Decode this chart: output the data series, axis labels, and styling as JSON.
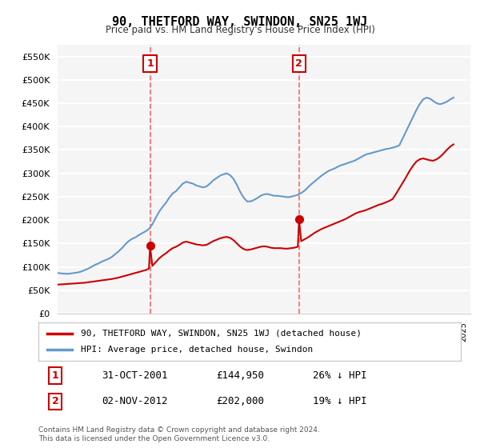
{
  "title": "90, THETFORD WAY, SWINDON, SN25 1WJ",
  "subtitle": "Price paid vs. HM Land Registry's House Price Index (HPI)",
  "ylabel_ticks": [
    "£0",
    "£50K",
    "£100K",
    "£150K",
    "£200K",
    "£250K",
    "£300K",
    "£350K",
    "£400K",
    "£450K",
    "£500K",
    "£550K"
  ],
  "ytick_values": [
    0,
    50000,
    100000,
    150000,
    200000,
    250000,
    300000,
    350000,
    400000,
    450000,
    500000,
    550000
  ],
  "ylim": [
    0,
    575000
  ],
  "red_line_color": "#cc0000",
  "blue_line_color": "#6699cc",
  "marker_color": "#cc0000",
  "vline_color": "#ff6666",
  "annotation_box_color": "#cc0000",
  "background_color": "#f5f5f5",
  "grid_color": "#ffffff",
  "legend_label_red": "90, THETFORD WAY, SWINDON, SN25 1WJ (detached house)",
  "legend_label_blue": "HPI: Average price, detached house, Swindon",
  "purchase1_date": "31-OCT-2001",
  "purchase1_price": "£144,950",
  "purchase1_pct": "26% ↓ HPI",
  "purchase1_year": 2001.83,
  "purchase1_value": 144950,
  "purchase2_date": "02-NOV-2012",
  "purchase2_price": "£202,000",
  "purchase2_pct": "19% ↓ HPI",
  "purchase2_year": 2012.84,
  "purchase2_value": 202000,
  "footnote": "Contains HM Land Registry data © Crown copyright and database right 2024.\nThis data is licensed under the Open Government Licence v3.0.",
  "hpi_years": [
    1995.0,
    1995.25,
    1995.5,
    1995.75,
    1996.0,
    1996.25,
    1996.5,
    1996.75,
    1997.0,
    1997.25,
    1997.5,
    1997.75,
    1998.0,
    1998.25,
    1998.5,
    1998.75,
    1999.0,
    1999.25,
    1999.5,
    1999.75,
    2000.0,
    2000.25,
    2000.5,
    2000.75,
    2001.0,
    2001.25,
    2001.5,
    2001.75,
    2002.0,
    2002.25,
    2002.5,
    2002.75,
    2003.0,
    2003.25,
    2003.5,
    2003.75,
    2004.0,
    2004.25,
    2004.5,
    2004.75,
    2005.0,
    2005.25,
    2005.5,
    2005.75,
    2006.0,
    2006.25,
    2006.5,
    2006.75,
    2007.0,
    2007.25,
    2007.5,
    2007.75,
    2008.0,
    2008.25,
    2008.5,
    2008.75,
    2009.0,
    2009.25,
    2009.5,
    2009.75,
    2010.0,
    2010.25,
    2010.5,
    2010.75,
    2011.0,
    2011.25,
    2011.5,
    2011.75,
    2012.0,
    2012.25,
    2012.5,
    2012.75,
    2013.0,
    2013.25,
    2013.5,
    2013.75,
    2014.0,
    2014.25,
    2014.5,
    2014.75,
    2015.0,
    2015.25,
    2015.5,
    2015.75,
    2016.0,
    2016.25,
    2016.5,
    2016.75,
    2017.0,
    2017.25,
    2017.5,
    2017.75,
    2018.0,
    2018.25,
    2018.5,
    2018.75,
    2019.0,
    2019.25,
    2019.5,
    2019.75,
    2020.0,
    2020.25,
    2020.5,
    2020.75,
    2021.0,
    2021.25,
    2021.5,
    2021.75,
    2022.0,
    2022.25,
    2022.5,
    2022.75,
    2023.0,
    2023.25,
    2023.5,
    2023.75,
    2024.0,
    2024.25
  ],
  "hpi_values": [
    87000,
    86000,
    85500,
    85000,
    86000,
    87000,
    88000,
    90000,
    93000,
    96000,
    100000,
    104000,
    107000,
    111000,
    114000,
    117000,
    121000,
    127000,
    133000,
    140000,
    148000,
    155000,
    160000,
    163000,
    168000,
    172000,
    176000,
    181000,
    191000,
    205000,
    218000,
    228000,
    237000,
    248000,
    257000,
    262000,
    270000,
    278000,
    282000,
    280000,
    278000,
    274000,
    272000,
    270000,
    272000,
    278000,
    285000,
    290000,
    295000,
    298000,
    300000,
    296000,
    288000,
    275000,
    260000,
    248000,
    240000,
    240000,
    243000,
    247000,
    252000,
    255000,
    256000,
    254000,
    252000,
    252000,
    251000,
    250000,
    249000,
    250000,
    252000,
    254000,
    258000,
    263000,
    270000,
    277000,
    283000,
    289000,
    295000,
    300000,
    305000,
    308000,
    311000,
    315000,
    318000,
    320000,
    323000,
    325000,
    328000,
    332000,
    336000,
    340000,
    342000,
    344000,
    346000,
    348000,
    350000,
    352000,
    353000,
    355000,
    357000,
    360000,
    375000,
    390000,
    405000,
    420000,
    435000,
    448000,
    458000,
    462000,
    460000,
    455000,
    450000,
    448000,
    450000,
    453000,
    458000,
    462000
  ],
  "red_years": [
    1995.0,
    1995.25,
    1995.5,
    1995.75,
    1996.0,
    1996.25,
    1996.5,
    1996.75,
    1997.0,
    1997.25,
    1997.5,
    1997.75,
    1998.0,
    1998.25,
    1998.5,
    1998.75,
    1999.0,
    1999.25,
    1999.5,
    1999.75,
    2000.0,
    2000.25,
    2000.5,
    2000.75,
    2001.0,
    2001.25,
    2001.5,
    2001.75,
    2001.83,
    2002.0,
    2002.25,
    2002.5,
    2002.75,
    2003.0,
    2003.25,
    2003.5,
    2003.75,
    2004.0,
    2004.25,
    2004.5,
    2004.75,
    2005.0,
    2005.25,
    2005.5,
    2005.75,
    2006.0,
    2006.25,
    2006.5,
    2006.75,
    2007.0,
    2007.25,
    2007.5,
    2007.75,
    2008.0,
    2008.25,
    2008.5,
    2008.75,
    2009.0,
    2009.25,
    2009.5,
    2009.75,
    2010.0,
    2010.25,
    2010.5,
    2010.75,
    2011.0,
    2011.25,
    2011.5,
    2011.75,
    2012.0,
    2012.25,
    2012.5,
    2012.75,
    2012.84,
    2013.0,
    2013.25,
    2013.5,
    2013.75,
    2014.0,
    2014.25,
    2014.5,
    2014.75,
    2015.0,
    2015.25,
    2015.5,
    2015.75,
    2016.0,
    2016.25,
    2016.5,
    2016.75,
    2017.0,
    2017.25,
    2017.5,
    2017.75,
    2018.0,
    2018.25,
    2018.5,
    2018.75,
    2019.0,
    2019.25,
    2019.5,
    2019.75,
    2020.0,
    2020.25,
    2020.5,
    2020.75,
    2021.0,
    2021.25,
    2021.5,
    2021.75,
    2022.0,
    2022.25,
    2022.5,
    2022.75,
    2023.0,
    2023.25,
    2023.5,
    2023.75,
    2024.0,
    2024.25
  ],
  "red_values": [
    62000,
    62500,
    63000,
    63500,
    64000,
    64500,
    65000,
    65500,
    66000,
    67000,
    68000,
    69000,
    70000,
    71000,
    72000,
    73000,
    74000,
    75500,
    77000,
    79000,
    81000,
    83000,
    85000,
    87000,
    89000,
    91000,
    93000,
    96000,
    144950,
    102000,
    110000,
    118000,
    124000,
    129000,
    135000,
    140000,
    143000,
    147000,
    152000,
    154000,
    152000,
    150000,
    148000,
    147000,
    146000,
    147000,
    151000,
    155000,
    158000,
    161000,
    163000,
    164000,
    162000,
    157000,
    150000,
    143000,
    138000,
    136000,
    137000,
    139000,
    141000,
    143000,
    144000,
    143000,
    141000,
    140000,
    140000,
    140000,
    139000,
    139000,
    140000,
    141000,
    143000,
    202000,
    155000,
    159000,
    163000,
    168000,
    173000,
    177000,
    181000,
    184000,
    187000,
    190000,
    193000,
    196000,
    199000,
    202000,
    206000,
    210000,
    214000,
    217000,
    219000,
    221000,
    224000,
    227000,
    230000,
    233000,
    235000,
    238000,
    241000,
    245000,
    256000,
    268000,
    280000,
    292000,
    305000,
    316000,
    325000,
    330000,
    332000,
    330000,
    328000,
    327000,
    330000,
    335000,
    342000,
    350000,
    357000,
    362000
  ]
}
